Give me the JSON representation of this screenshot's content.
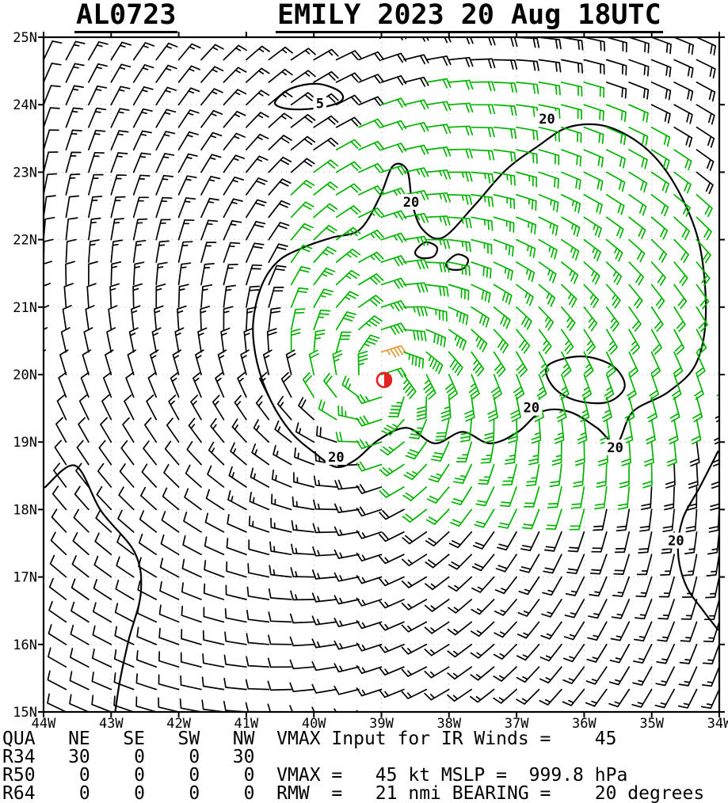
{
  "header": {
    "storm_id": "AL0723",
    "title": "EMILY 2023 20 Aug 18UTC"
  },
  "footer": {
    "lines": [
      "QUA   NE   SE   SW   NW  VMAX Input for IR Winds =    45",
      "R34   30    0    0   30",
      "R50    0    0    0    0  VMAX =   45 kt MSLP =  999.8 hPa",
      "R64    0    0    0    0  RMW  =   21 nmi BEARING =    20 degrees"
    ],
    "wind_radii": {
      "columns": [
        "NE",
        "SE",
        "SW",
        "NW"
      ],
      "rows": [
        {
          "label": "R34",
          "values": [
            30,
            0,
            0,
            30
          ]
        },
        {
          "label": "R50",
          "values": [
            0,
            0,
            0,
            0
          ]
        },
        {
          "label": "R64",
          "values": [
            0,
            0,
            0,
            0
          ]
        }
      ]
    },
    "stats": {
      "vmax_input_for_ir_winds_kt": 45,
      "vmax_kt": 45,
      "mslp_hpa": 999.8,
      "rmw_nmi": 21,
      "bearing_deg": 20
    }
  },
  "chart_data": {
    "type": "wind-barb-map",
    "title": "EMILY 2023 20 Aug 18UTC",
    "storm_id": "AL0723",
    "x_axis": {
      "start": 44,
      "end": 34,
      "labels": [
        "44W",
        "43W",
        "42W",
        "41W",
        "40W",
        "39W",
        "38W",
        "37W",
        "36W",
        "35W",
        "34W"
      ]
    },
    "y_axis": {
      "start": 15,
      "end": 25,
      "labels": [
        "25N",
        "24N",
        "23N",
        "22N",
        "21N",
        "20N",
        "19N",
        "18N",
        "17N",
        "16N",
        "15N"
      ]
    },
    "wind_field": {
      "center": {
        "lon_w": 39.0,
        "lat_n": 19.9
      },
      "vmax_kt": 45,
      "rmw_deg": 0.35,
      "decay_exponent": 0.41,
      "inner_exponent": 0.7,
      "asymmetry_amplitude": 0.35,
      "asymmetry_direction_deg": 35,
      "inflow_deg": 18,
      "grid_spacing_deg": 0.3333,
      "max_speed_cap_kt": 46
    },
    "barb_colors": {
      "default": "#000000",
      "gale": "#00b400",
      "max_wind": "#e39b35"
    },
    "color_thresholds_kt": {
      "green_min": 19.5
    },
    "center_marker": {
      "lon_w": 38.96,
      "lat_n": 19.92,
      "color": "#e32222"
    },
    "isotachs": [
      {
        "value": 20,
        "closed": true,
        "points": [
          [
            39.32,
            22.15
          ],
          [
            39.03,
            22.62
          ],
          [
            38.83,
            23.09
          ],
          [
            38.62,
            23.03
          ],
          [
            38.54,
            22.52
          ],
          [
            38.39,
            22.15
          ],
          [
            38.09,
            22.03
          ],
          [
            37.63,
            22.5
          ],
          [
            37.16,
            23.03
          ],
          [
            36.69,
            23.38
          ],
          [
            36.22,
            23.67
          ],
          [
            35.64,
            23.67
          ],
          [
            35.05,
            23.32
          ],
          [
            34.61,
            22.73
          ],
          [
            34.29,
            21.91
          ],
          [
            34.2,
            20.86
          ],
          [
            34.35,
            20.15
          ],
          [
            34.76,
            19.74
          ],
          [
            35.28,
            19.45
          ],
          [
            35.52,
            18.98
          ],
          [
            35.81,
            19.21
          ],
          [
            36.22,
            19.45
          ],
          [
            36.63,
            19.45
          ],
          [
            36.98,
            19.15
          ],
          [
            37.39,
            18.98
          ],
          [
            37.8,
            19.15
          ],
          [
            38.21,
            18.98
          ],
          [
            38.62,
            19.21
          ],
          [
            39.03,
            19.04
          ],
          [
            39.38,
            18.74
          ],
          [
            39.67,
            18.63
          ],
          [
            39.99,
            18.84
          ],
          [
            40.34,
            19.15
          ],
          [
            40.64,
            19.62
          ],
          [
            40.84,
            20.18
          ],
          [
            40.9,
            20.74
          ],
          [
            40.78,
            21.3
          ],
          [
            40.53,
            21.68
          ],
          [
            40.14,
            21.89
          ],
          [
            39.73,
            22.03
          ]
        ]
      },
      {
        "value": 5,
        "closed": true,
        "points": [
          [
            40.57,
            24.05
          ],
          [
            40.34,
            24.24
          ],
          [
            39.96,
            24.31
          ],
          [
            39.64,
            24.21
          ],
          [
            39.58,
            24.07
          ],
          [
            39.83,
            23.97
          ],
          [
            40.22,
            23.93
          ],
          [
            40.49,
            23.96
          ]
        ]
      },
      {
        "value": 20,
        "closed": true,
        "points": [
          [
            38.5,
            21.82
          ],
          [
            38.35,
            21.96
          ],
          [
            38.18,
            21.89
          ],
          [
            38.23,
            21.75
          ],
          [
            38.42,
            21.73
          ]
        ]
      },
      {
        "value": 20,
        "closed": true,
        "points": [
          [
            38.04,
            21.65
          ],
          [
            37.88,
            21.78
          ],
          [
            37.72,
            21.71
          ],
          [
            37.79,
            21.57
          ],
          [
            37.98,
            21.56
          ]
        ]
      },
      {
        "value": 20,
        "closed": true,
        "points": [
          [
            36.54,
            20.13
          ],
          [
            36.05,
            20.27
          ],
          [
            35.58,
            20.13
          ],
          [
            35.4,
            19.82
          ],
          [
            35.66,
            19.59
          ],
          [
            36.13,
            19.62
          ],
          [
            36.46,
            19.82
          ]
        ]
      },
      {
        "value": 20,
        "closed": false,
        "points": [
          [
            34.02,
            18.86
          ],
          [
            34.29,
            18.33
          ],
          [
            34.54,
            17.86
          ],
          [
            34.61,
            17.36
          ],
          [
            34.49,
            16.87
          ],
          [
            34.23,
            16.49
          ],
          [
            34.02,
            16.22
          ]
        ]
      },
      {
        "value": 5,
        "closed": false,
        "points": [
          [
            43.98,
            18.33
          ],
          [
            43.53,
            18.65
          ],
          [
            43.15,
            17.98
          ],
          [
            42.65,
            17.36
          ],
          [
            42.56,
            16.77
          ],
          [
            42.74,
            16.07
          ],
          [
            42.87,
            15.46
          ],
          [
            42.94,
            15.0
          ]
        ]
      }
    ],
    "contour_labels": [
      {
        "value": "5",
        "lon_w": 39.91,
        "lat_n": 24.02
      },
      {
        "value": "20",
        "lon_w": 36.55,
        "lat_n": 23.79
      },
      {
        "value": "20",
        "lon_w": 38.56,
        "lat_n": 22.56
      },
      {
        "value": "20",
        "lon_w": 36.78,
        "lat_n": 19.51
      },
      {
        "value": "20",
        "lon_w": 35.54,
        "lat_n": 18.92
      },
      {
        "value": "20",
        "lon_w": 39.67,
        "lat_n": 18.78
      },
      {
        "value": "20",
        "lon_w": 34.64,
        "lat_n": 17.54
      }
    ]
  }
}
